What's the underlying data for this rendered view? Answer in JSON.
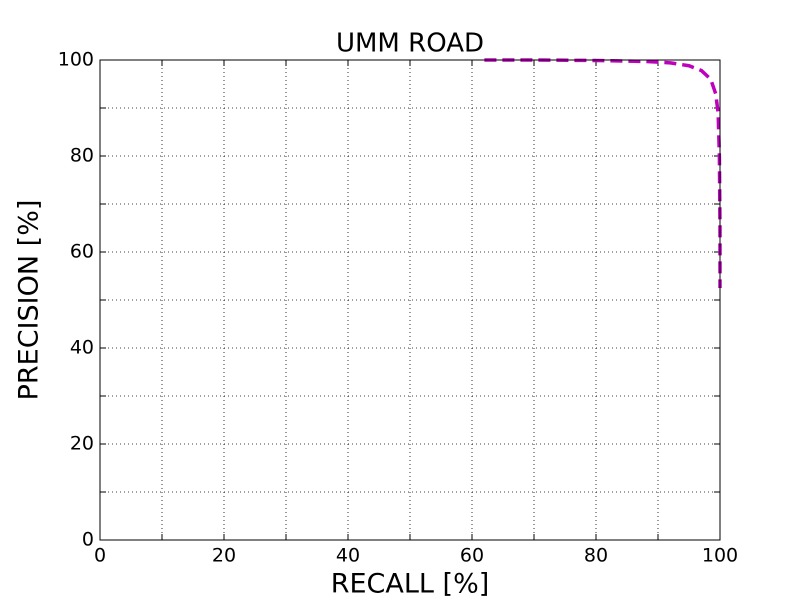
{
  "chart_data": {
    "type": "line",
    "title": "UMM ROAD",
    "xlabel": "RECALL [%]",
    "ylabel": "PRECISION [%]",
    "xlim": [
      0,
      100
    ],
    "ylim": [
      0,
      100
    ],
    "xticks": [
      0,
      20,
      40,
      60,
      80,
      100
    ],
    "yticks": [
      0,
      20,
      40,
      60,
      80,
      100
    ],
    "minor_xticks": [
      10,
      30,
      50,
      70,
      90
    ],
    "minor_yticks": [
      10,
      30,
      50,
      70,
      90
    ],
    "grid": true,
    "series": [
      {
        "color": "#bf00bf",
        "dashed": true,
        "x": [
          62,
          70,
          80,
          88,
          92,
          95,
          97,
          98.5,
          99.3,
          99.7,
          99.9,
          100,
          100
        ],
        "values": [
          100,
          100,
          99.9,
          99.7,
          99.4,
          98.8,
          97.8,
          96,
          93,
          89,
          80,
          65,
          52.5
        ]
      }
    ]
  }
}
